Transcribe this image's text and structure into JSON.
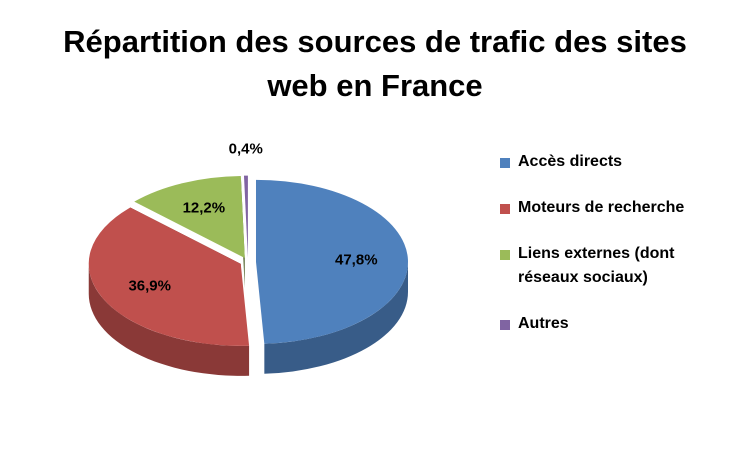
{
  "chart_data": {
    "type": "pie",
    "title": "Répartition des sources de trafic des sites web en France",
    "categories": [
      "Accès directs",
      "Moteurs de recherche",
      "Liens externes (dont réseaux sociaux)",
      "Autres"
    ],
    "values": [
      47.8,
      36.9,
      12.2,
      0.4
    ],
    "value_labels": [
      "47,8%",
      "36,9%",
      "12,2%",
      "0,4%"
    ],
    "colors": [
      "#4f81bd",
      "#c0504d",
      "#9bbb59",
      "#8064a2"
    ],
    "legend": "right"
  }
}
